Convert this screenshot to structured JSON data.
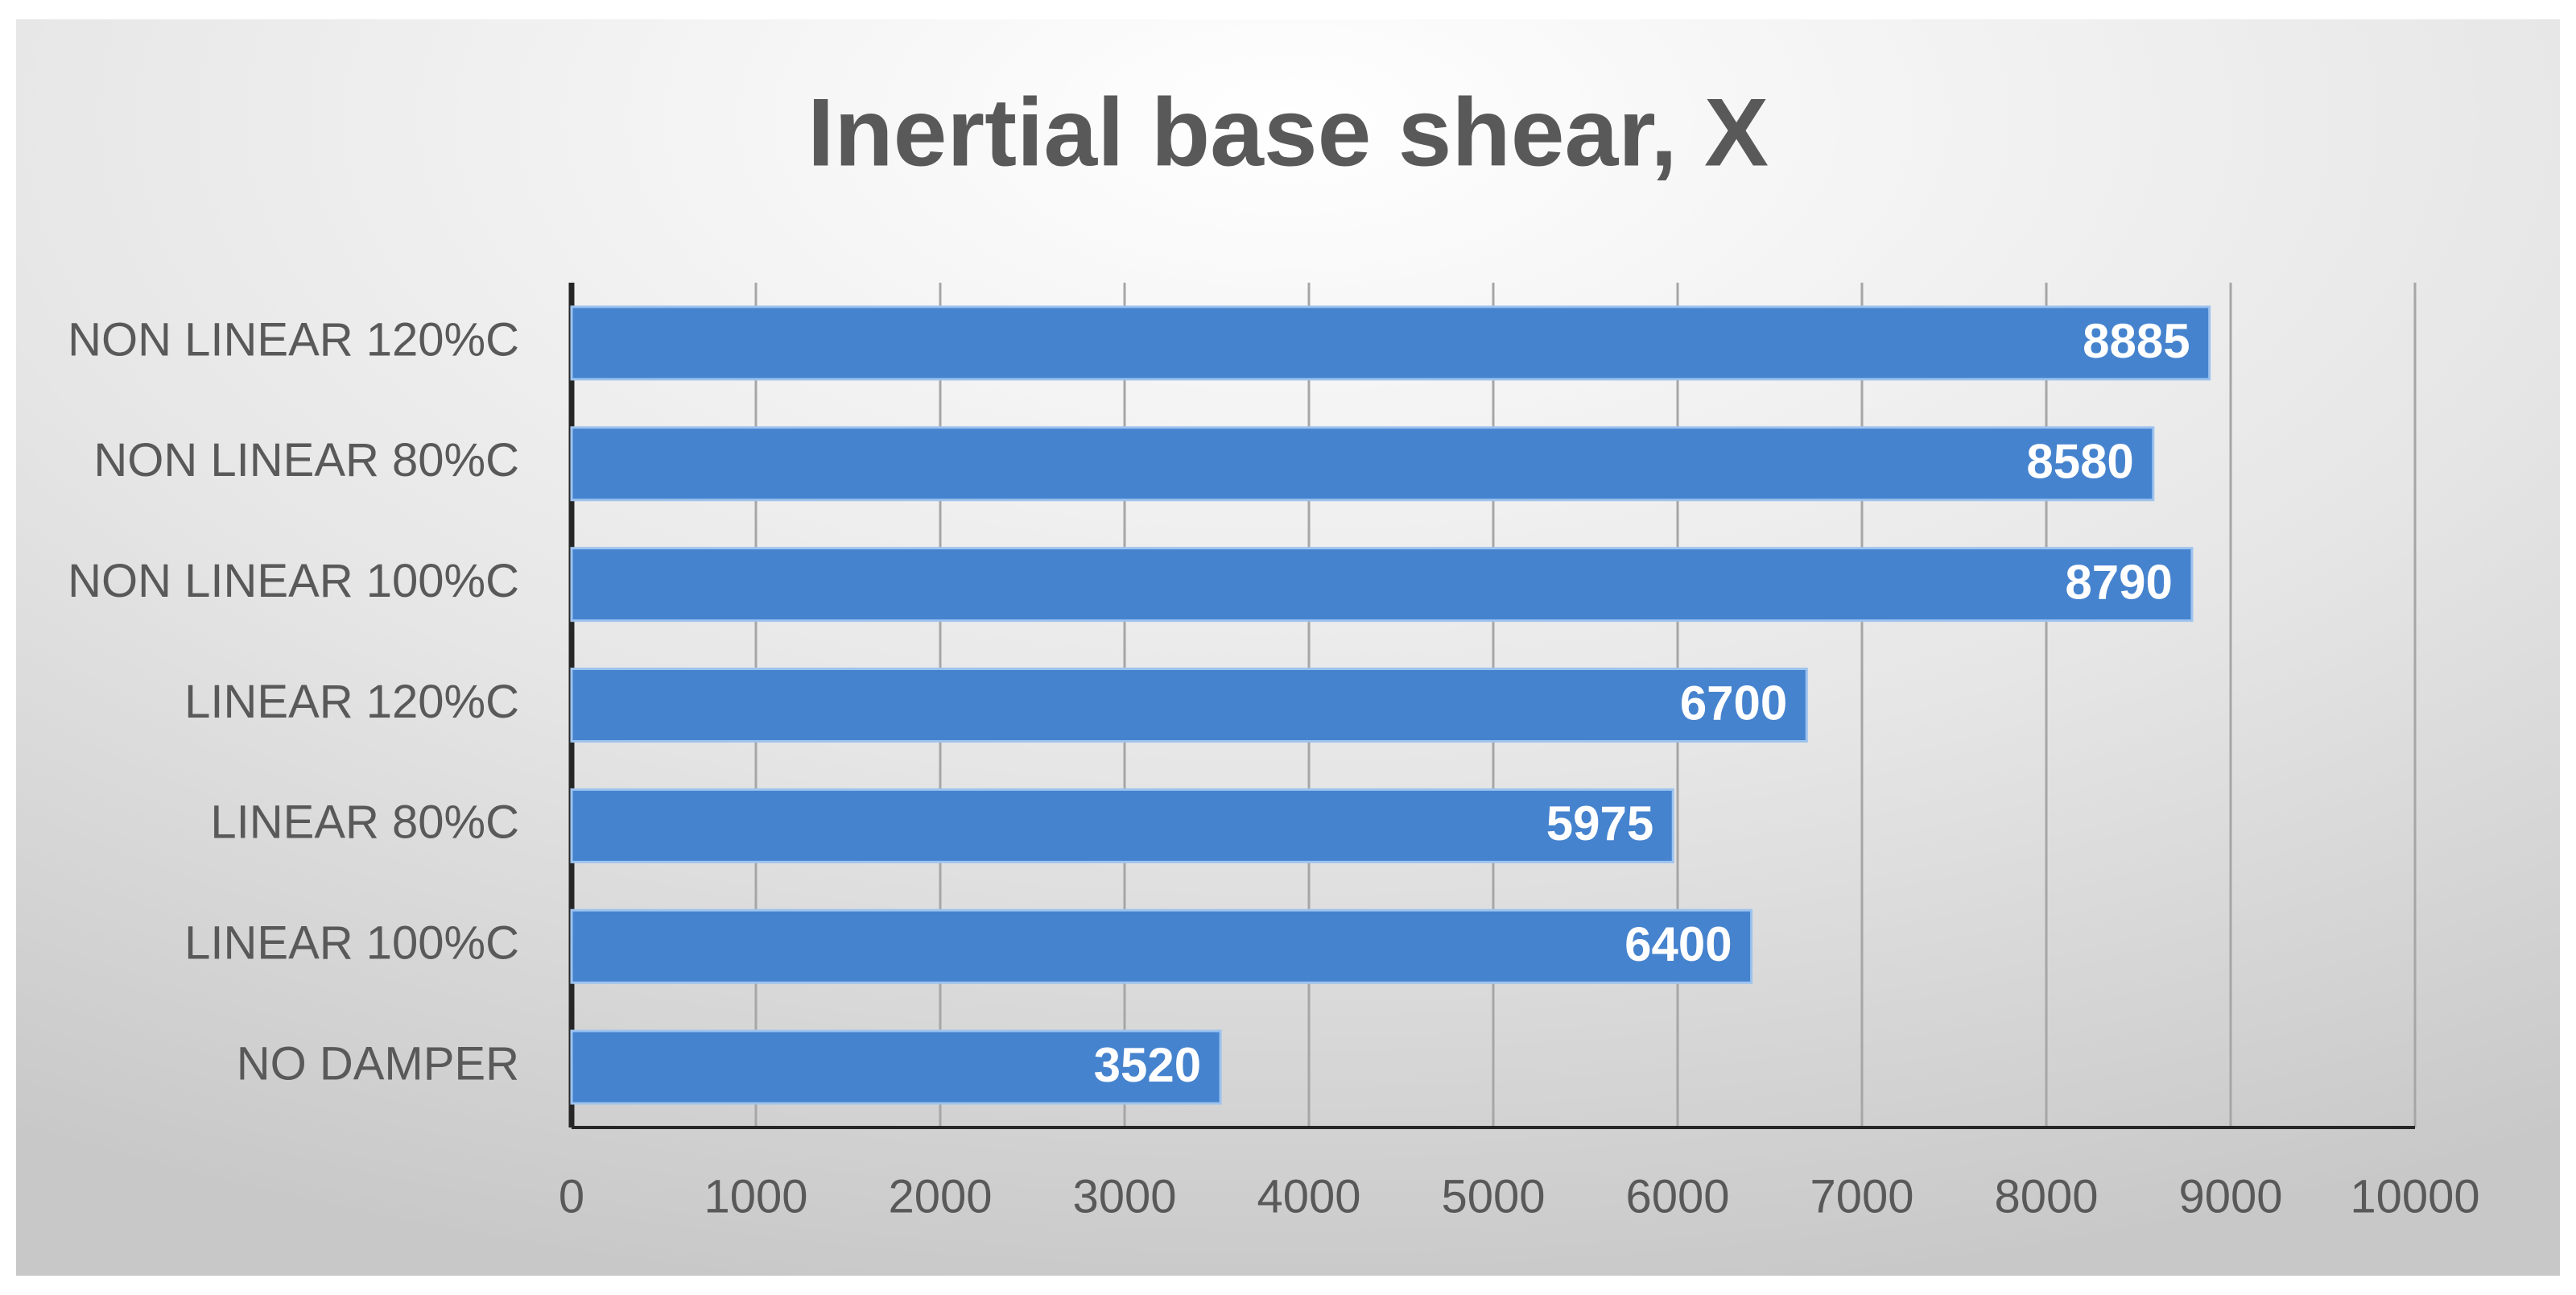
{
  "chart_data": {
    "type": "bar",
    "orientation": "horizontal",
    "title": "Inertial base shear, X",
    "categories": [
      "NON LINEAR 120%C",
      "NON LINEAR 80%C",
      "NON LINEAR 100%C",
      "LINEAR 120%C",
      "LINEAR 80%C",
      "LINEAR 100%C",
      "NO DAMPER"
    ],
    "values": [
      8885,
      8580,
      8790,
      6700,
      5975,
      6400,
      3520
    ],
    "color": "#4683ce",
    "xlim": [
      0,
      10000
    ],
    "xticks": [
      0,
      1000,
      2000,
      3000,
      4000,
      5000,
      6000,
      7000,
      8000,
      9000,
      10000
    ],
    "grid": true
  }
}
